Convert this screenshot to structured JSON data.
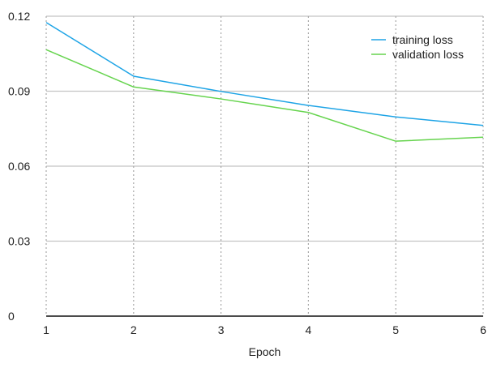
{
  "chart_data": {
    "type": "line",
    "x": [
      1,
      2,
      3,
      4,
      5,
      6
    ],
    "series": [
      {
        "name": "training loss",
        "color": "#1ea4e6",
        "values": [
          0.1175,
          0.096,
          0.0899,
          0.0843,
          0.0797,
          0.0763
        ]
      },
      {
        "name": "validation loss",
        "color": "#66d44e",
        "values": [
          0.1066,
          0.0917,
          0.0869,
          0.0815,
          0.07,
          0.0716
        ]
      }
    ],
    "xlabel": "Epoch",
    "ylabel": "",
    "xticks": [
      "1",
      "2",
      "3",
      "4",
      "5",
      "6"
    ],
    "yticks": [
      "0",
      "0.03",
      "0.06",
      "0.09",
      "0.12"
    ],
    "xlim": [
      1,
      6
    ],
    "ylim": [
      0,
      0.12
    ],
    "grid": true,
    "legend_position": "top-right"
  }
}
